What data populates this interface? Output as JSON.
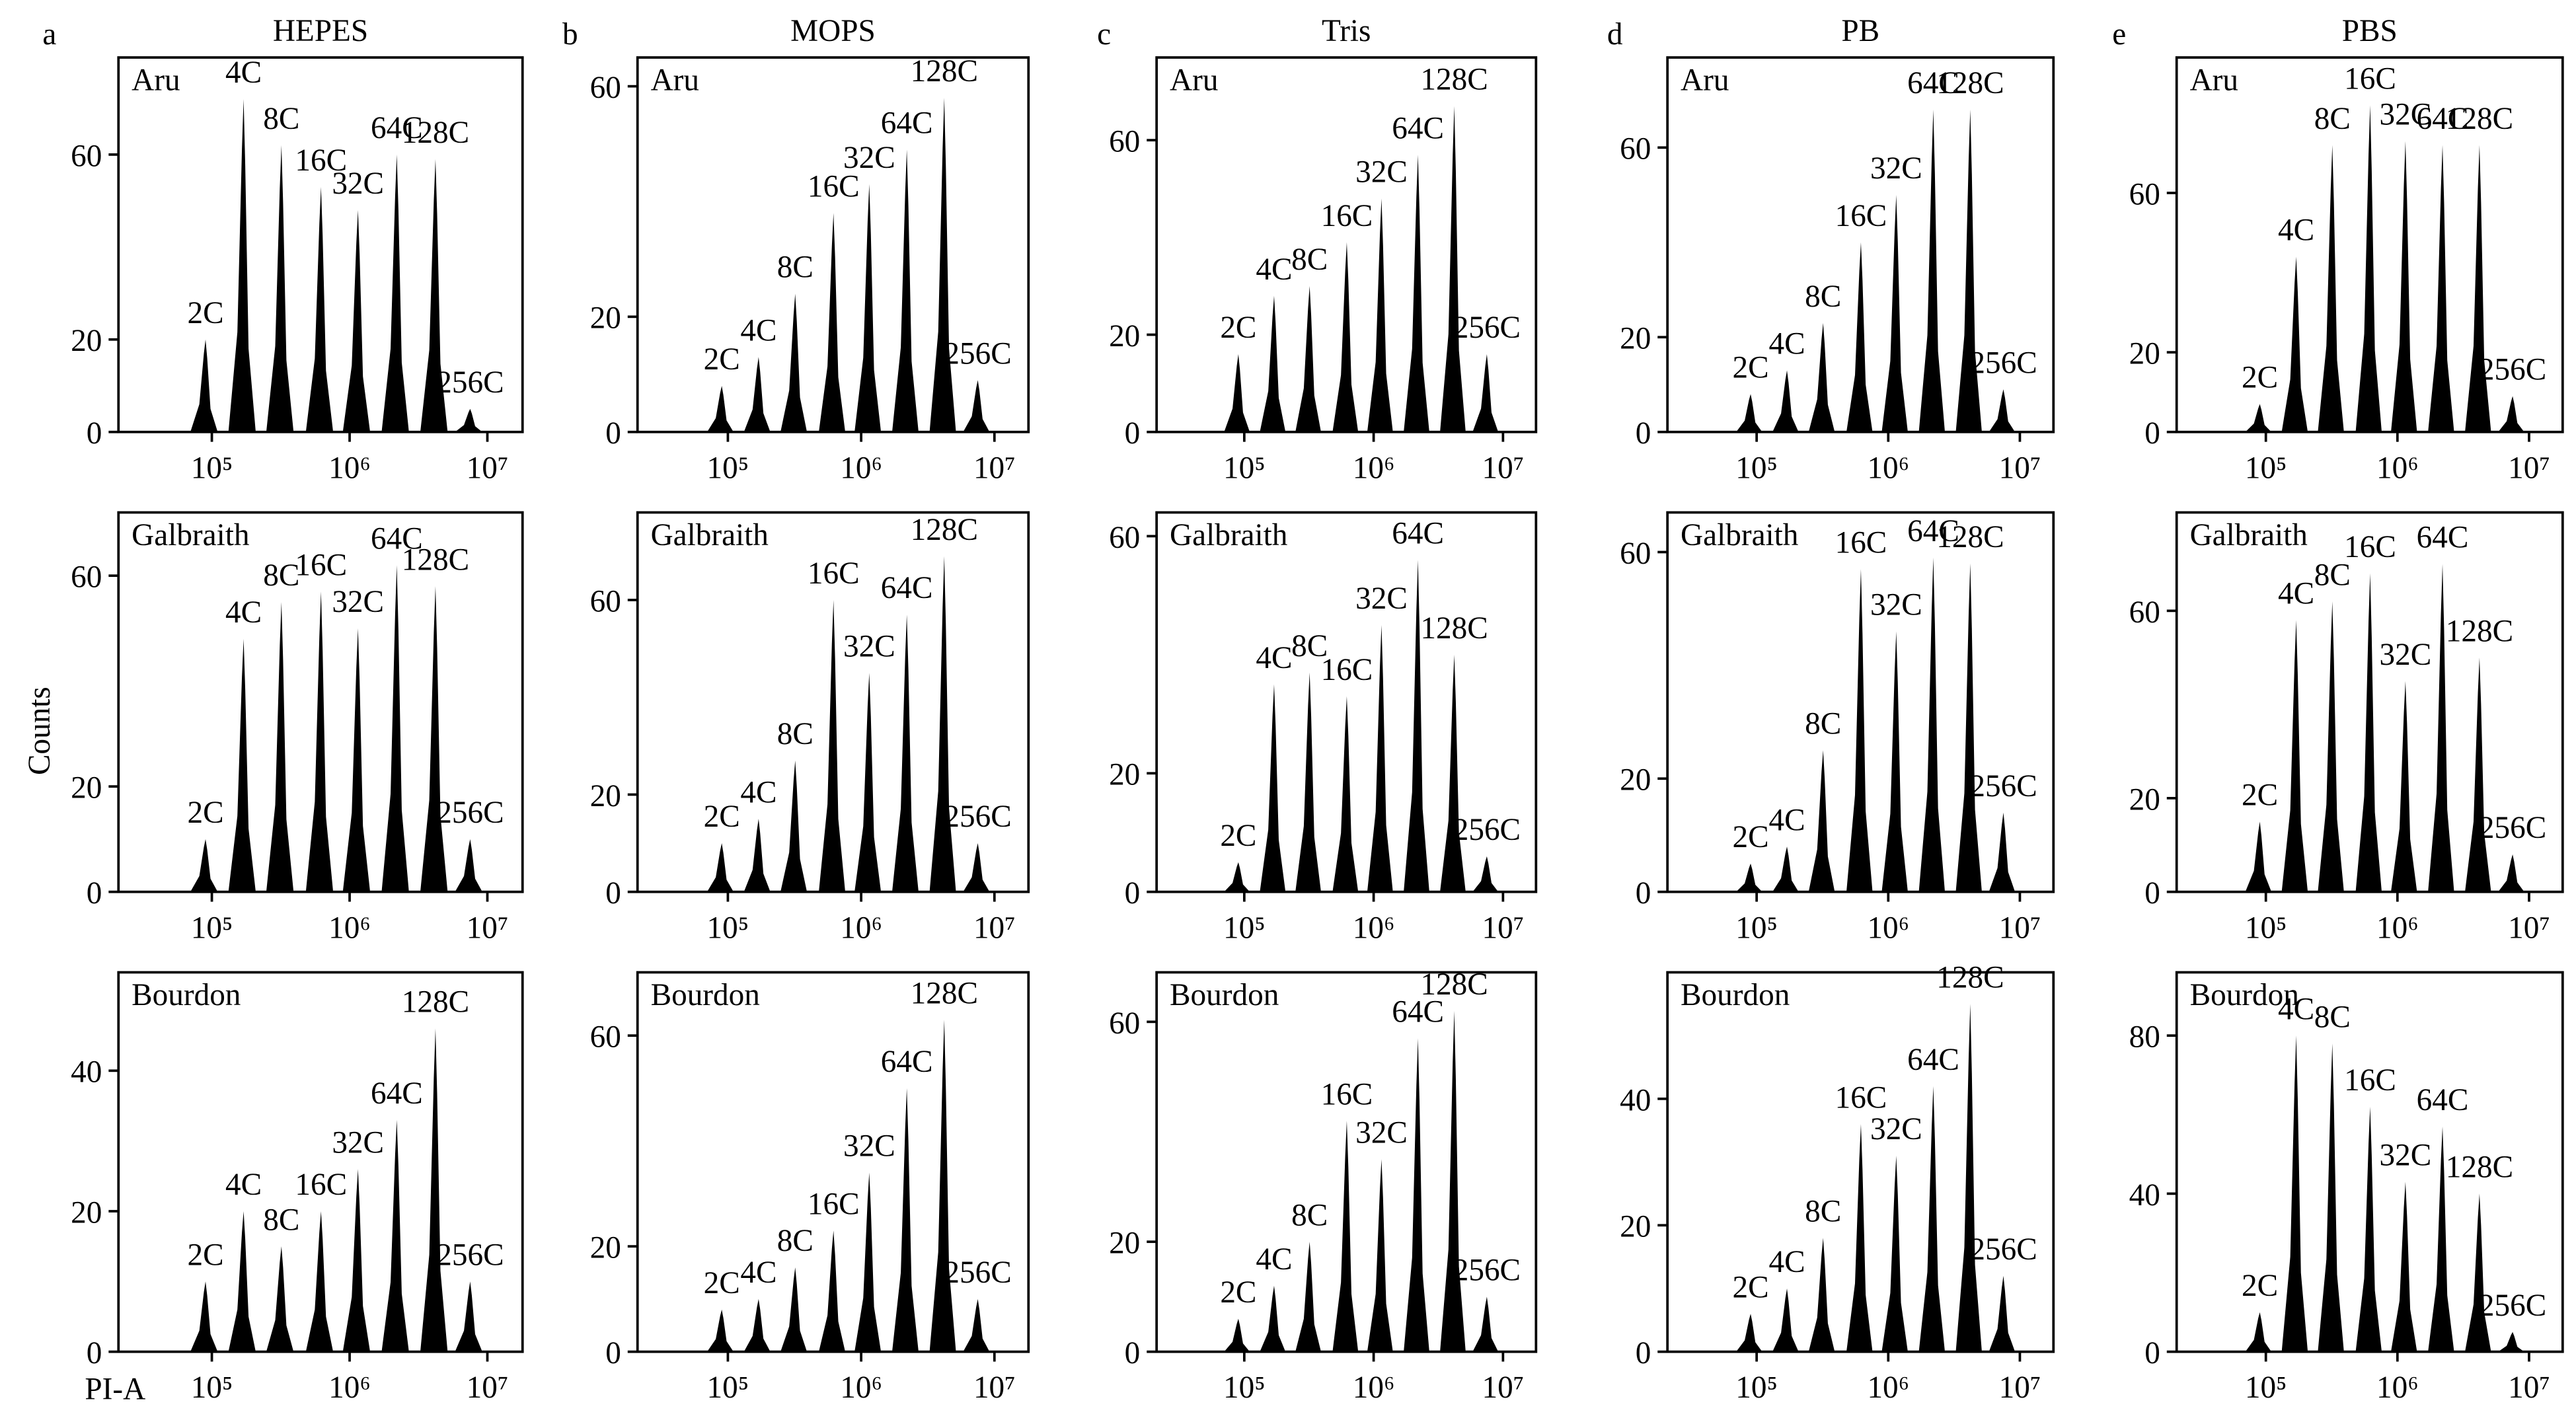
{
  "y_label": "Counts",
  "x_label": "PI-A",
  "label_color": "#b01414",
  "chart_data": [
    {
      "type": "histogram",
      "panel": "a",
      "title": "HEPES",
      "label": "Aru",
      "log_x": true,
      "color": "#000000",
      "xlim": [
        21000,
        18000000
      ],
      "xticks": [
        {
          "value": 100000,
          "label": "10⁵"
        },
        {
          "value": 1000000,
          "label": "10⁶"
        },
        {
          "value": 10000000,
          "label": "10⁷"
        }
      ],
      "ylim": [
        0,
        81
      ],
      "yticks": [
        0,
        20,
        60
      ],
      "categories": [
        "2C",
        "4C",
        "8C",
        "16C",
        "32C",
        "64C",
        "128C",
        "256C"
      ],
      "x": [
        90000,
        170000,
        320000,
        620000,
        1150000,
        2200000,
        4200000,
        7500000
      ],
      "values": [
        20,
        72,
        62,
        53,
        48,
        60,
        59,
        5
      ]
    },
    {
      "type": "histogram",
      "panel": "b",
      "title": "MOPS",
      "label": "Aru",
      "log_x": true,
      "color": "#000000",
      "xlim": [
        21000,
        18000000
      ],
      "xticks": [
        {
          "value": 100000,
          "label": "10⁵"
        },
        {
          "value": 1000000,
          "label": "10⁶"
        },
        {
          "value": 10000000,
          "label": "10⁷"
        }
      ],
      "ylim": [
        0,
        65
      ],
      "yticks": [
        0,
        20,
        60
      ],
      "categories": [
        "2C",
        "4C",
        "8C",
        "16C",
        "32C",
        "64C",
        "128C",
        "256C"
      ],
      "x": [
        90000,
        170000,
        320000,
        620000,
        1150000,
        2200000,
        4200000,
        7500000
      ],
      "values": [
        8,
        13,
        24,
        38,
        43,
        49,
        58,
        9
      ]
    },
    {
      "type": "histogram",
      "panel": "c",
      "title": "Tris",
      "label": "Aru",
      "log_x": true,
      "color": "#000000",
      "xlim": [
        21000,
        18000000
      ],
      "xticks": [
        {
          "value": 100000,
          "label": "10⁵"
        },
        {
          "value": 1000000,
          "label": "10⁶"
        },
        {
          "value": 10000000,
          "label": "10⁷"
        }
      ],
      "ylim": [
        0,
        77
      ],
      "yticks": [
        0,
        20,
        60
      ],
      "categories": [
        "2C",
        "4C",
        "8C",
        "16C",
        "32C",
        "64C",
        "128C",
        "256C"
      ],
      "x": [
        90000,
        170000,
        320000,
        620000,
        1150000,
        2200000,
        4200000,
        7500000
      ],
      "values": [
        16,
        28,
        30,
        39,
        48,
        57,
        67,
        16
      ]
    },
    {
      "type": "histogram",
      "panel": "d",
      "title": "PB",
      "label": "Aru",
      "log_x": true,
      "color": "#000000",
      "xlim": [
        21000,
        18000000
      ],
      "xticks": [
        {
          "value": 100000,
          "label": "10⁵"
        },
        {
          "value": 1000000,
          "label": "10⁶"
        },
        {
          "value": 10000000,
          "label": "10⁷"
        }
      ],
      "ylim": [
        0,
        79
      ],
      "yticks": [
        0,
        20,
        60
      ],
      "categories": [
        "2C",
        "4C",
        "8C",
        "16C",
        "32C",
        "64C",
        "128C",
        "256C"
      ],
      "x": [
        90000,
        170000,
        320000,
        620000,
        1150000,
        2200000,
        4200000,
        7500000
      ],
      "values": [
        8,
        13,
        23,
        40,
        50,
        68,
        68,
        9
      ]
    },
    {
      "type": "histogram",
      "panel": "e",
      "title": "PBS",
      "label": "Aru",
      "log_x": true,
      "color": "#000000",
      "xlim": [
        21000,
        18000000
      ],
      "xticks": [
        {
          "value": 100000,
          "label": "10⁵"
        },
        {
          "value": 1000000,
          "label": "10⁶"
        },
        {
          "value": 10000000,
          "label": "10⁷"
        }
      ],
      "ylim": [
        0,
        94
      ],
      "yticks": [
        0,
        20,
        60
      ],
      "categories": [
        "2C",
        "4C",
        "8C",
        "16C",
        "32C",
        "64C",
        "128C",
        "256C"
      ],
      "x": [
        90000,
        170000,
        320000,
        620000,
        1150000,
        2200000,
        4200000,
        7500000
      ],
      "values": [
        7,
        44,
        72,
        82,
        73,
        72,
        72,
        9
      ]
    },
    {
      "type": "histogram",
      "label": "Galbraith",
      "log_x": true,
      "color": "#000000",
      "xlim": [
        21000,
        18000000
      ],
      "xticks": [
        {
          "value": 100000,
          "label": "10⁵"
        },
        {
          "value": 1000000,
          "label": "10⁶"
        },
        {
          "value": 10000000,
          "label": "10⁷"
        }
      ],
      "ylim": [
        0,
        72
      ],
      "yticks": [
        0,
        20,
        60
      ],
      "categories": [
        "2C",
        "4C",
        "8C",
        "16C",
        "32C",
        "64C",
        "128C",
        "256C"
      ],
      "x": [
        90000,
        170000,
        320000,
        620000,
        1150000,
        2200000,
        4200000,
        7500000
      ],
      "values": [
        10,
        48,
        55,
        57,
        50,
        62,
        58,
        10
      ]
    },
    {
      "type": "histogram",
      "label": "Galbraith",
      "log_x": true,
      "color": "#000000",
      "xlim": [
        21000,
        18000000
      ],
      "xticks": [
        {
          "value": 100000,
          "label": "10⁵"
        },
        {
          "value": 1000000,
          "label": "10⁶"
        },
        {
          "value": 10000000,
          "label": "10⁷"
        }
      ],
      "ylim": [
        0,
        78
      ],
      "yticks": [
        0,
        20,
        60
      ],
      "categories": [
        "2C",
        "4C",
        "8C",
        "16C",
        "32C",
        "64C",
        "128C",
        "256C"
      ],
      "x": [
        90000,
        170000,
        320000,
        620000,
        1150000,
        2200000,
        4200000,
        7500000
      ],
      "values": [
        10,
        15,
        27,
        60,
        45,
        57,
        69,
        10
      ]
    },
    {
      "type": "histogram",
      "label": "Galbraith",
      "log_x": true,
      "color": "#000000",
      "xlim": [
        21000,
        18000000
      ],
      "xticks": [
        {
          "value": 100000,
          "label": "10⁵"
        },
        {
          "value": 1000000,
          "label": "10⁶"
        },
        {
          "value": 10000000,
          "label": "10⁷"
        }
      ],
      "ylim": [
        0,
        64
      ],
      "yticks": [
        0,
        20,
        60
      ],
      "categories": [
        "2C",
        "4C",
        "8C",
        "16C",
        "32C",
        "64C",
        "128C",
        "256C"
      ],
      "x": [
        90000,
        170000,
        320000,
        620000,
        1150000,
        2200000,
        4200000,
        7500000
      ],
      "values": [
        5,
        35,
        37,
        33,
        45,
        56,
        40,
        6
      ]
    },
    {
      "type": "histogram",
      "label": "Galbraith",
      "log_x": true,
      "color": "#000000",
      "xlim": [
        21000,
        18000000
      ],
      "xticks": [
        {
          "value": 100000,
          "label": "10⁵"
        },
        {
          "value": 1000000,
          "label": "10⁶"
        },
        {
          "value": 10000000,
          "label": "10⁷"
        }
      ],
      "ylim": [
        0,
        67
      ],
      "yticks": [
        0,
        20,
        60
      ],
      "categories": [
        "2C",
        "4C",
        "8C",
        "16C",
        "32C",
        "64C",
        "128C",
        "256C"
      ],
      "x": [
        90000,
        170000,
        320000,
        620000,
        1150000,
        2200000,
        4200000,
        7500000
      ],
      "values": [
        5,
        8,
        25,
        57,
        46,
        59,
        58,
        14
      ]
    },
    {
      "type": "histogram",
      "label": "Galbraith",
      "log_x": true,
      "color": "#000000",
      "xlim": [
        21000,
        18000000
      ],
      "xticks": [
        {
          "value": 100000,
          "label": "10⁵"
        },
        {
          "value": 1000000,
          "label": "10⁶"
        },
        {
          "value": 10000000,
          "label": "10⁷"
        }
      ],
      "ylim": [
        0,
        81
      ],
      "yticks": [
        0,
        20,
        60
      ],
      "categories": [
        "2C",
        "4C",
        "8C",
        "16C",
        "32C",
        "64C",
        "128C",
        "256C"
      ],
      "x": [
        90000,
        170000,
        320000,
        620000,
        1150000,
        2200000,
        4200000,
        7500000
      ],
      "values": [
        15,
        58,
        62,
        68,
        45,
        70,
        50,
        8
      ]
    },
    {
      "type": "histogram",
      "label": "Bourdon",
      "log_x": true,
      "color": "#000000",
      "xlim": [
        21000,
        18000000
      ],
      "xticks": [
        {
          "value": 100000,
          "label": "10⁵"
        },
        {
          "value": 1000000,
          "label": "10⁶"
        },
        {
          "value": 10000000,
          "label": "10⁷"
        }
      ],
      "ylim": [
        0,
        54
      ],
      "yticks": [
        0,
        20,
        40
      ],
      "categories": [
        "2C",
        "4C",
        "8C",
        "16C",
        "32C",
        "64C",
        "128C",
        "256C"
      ],
      "x": [
        90000,
        170000,
        320000,
        620000,
        1150000,
        2200000,
        4200000,
        7500000
      ],
      "values": [
        10,
        20,
        15,
        20,
        26,
        33,
        46,
        10
      ]
    },
    {
      "type": "histogram",
      "label": "Bourdon",
      "log_x": true,
      "color": "#000000",
      "xlim": [
        21000,
        18000000
      ],
      "xticks": [
        {
          "value": 100000,
          "label": "10⁵"
        },
        {
          "value": 1000000,
          "label": "10⁶"
        },
        {
          "value": 10000000,
          "label": "10⁷"
        }
      ],
      "ylim": [
        0,
        72
      ],
      "yticks": [
        0,
        20,
        60
      ],
      "categories": [
        "2C",
        "4C",
        "8C",
        "16C",
        "32C",
        "64C",
        "128C",
        "256C"
      ],
      "x": [
        90000,
        170000,
        320000,
        620000,
        1150000,
        2200000,
        4200000,
        7500000
      ],
      "values": [
        8,
        10,
        16,
        23,
        34,
        50,
        63,
        10
      ]
    },
    {
      "type": "histogram",
      "label": "Bourdon",
      "log_x": true,
      "color": "#000000",
      "xlim": [
        21000,
        18000000
      ],
      "xticks": [
        {
          "value": 100000,
          "label": "10⁵"
        },
        {
          "value": 1000000,
          "label": "10⁶"
        },
        {
          "value": 10000000,
          "label": "10⁷"
        }
      ],
      "ylim": [
        0,
        69
      ],
      "yticks": [
        0,
        20,
        60
      ],
      "categories": [
        "2C",
        "4C",
        "8C",
        "16C",
        "32C",
        "64C",
        "128C",
        "256C"
      ],
      "x": [
        90000,
        170000,
        320000,
        620000,
        1150000,
        2200000,
        4200000,
        7500000
      ],
      "values": [
        6,
        12,
        20,
        42,
        35,
        57,
        62,
        10
      ]
    },
    {
      "type": "histogram",
      "label": "Bourdon",
      "log_x": true,
      "color": "#000000",
      "xlim": [
        21000,
        18000000
      ],
      "xticks": [
        {
          "value": 100000,
          "label": "10⁵"
        },
        {
          "value": 1000000,
          "label": "10⁶"
        },
        {
          "value": 10000000,
          "label": "10⁷"
        }
      ],
      "ylim": [
        0,
        60
      ],
      "yticks": [
        0,
        20,
        40
      ],
      "categories": [
        "2C",
        "4C",
        "8C",
        "16C",
        "32C",
        "64C",
        "128C",
        "256C"
      ],
      "x": [
        90000,
        170000,
        320000,
        620000,
        1150000,
        2200000,
        4200000,
        7500000
      ],
      "values": [
        6,
        10,
        18,
        36,
        31,
        42,
        55,
        12
      ]
    },
    {
      "type": "histogram",
      "label": "Bourdon",
      "log_x": true,
      "color": "#000000",
      "xlim": [
        21000,
        18000000
      ],
      "xticks": [
        {
          "value": 100000,
          "label": "10⁵"
        },
        {
          "value": 1000000,
          "label": "10⁶"
        },
        {
          "value": 10000000,
          "label": "10⁷"
        }
      ],
      "ylim": [
        0,
        96
      ],
      "yticks": [
        0,
        40,
        80
      ],
      "categories": [
        "2C",
        "4C",
        "8C",
        "16C",
        "32C",
        "64C",
        "128C",
        "256C"
      ],
      "x": [
        90000,
        170000,
        320000,
        620000,
        1150000,
        2200000,
        4200000,
        7500000
      ],
      "values": [
        10,
        80,
        78,
        62,
        43,
        57,
        40,
        5
      ]
    }
  ]
}
